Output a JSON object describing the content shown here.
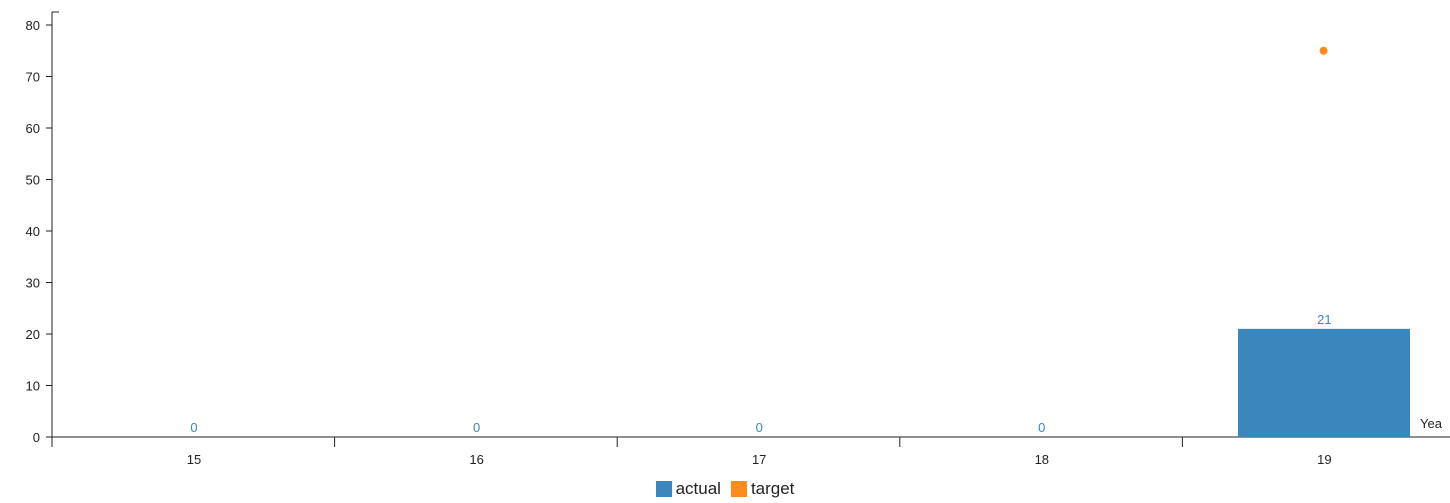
{
  "chart_data": {
    "type": "bar",
    "categories": [
      "15",
      "16",
      "17",
      "18",
      "19"
    ],
    "series": [
      {
        "name": "actual",
        "type": "bar",
        "color": "#3a87be",
        "values": [
          0,
          0,
          0,
          0,
          21
        ]
      },
      {
        "name": "target",
        "type": "scatter",
        "color": "#ff8c1a",
        "values": [
          null,
          null,
          null,
          null,
          75
        ]
      }
    ],
    "data_labels": [
      "0",
      "0",
      "0",
      "0",
      "21"
    ],
    "xlabel": "Yea",
    "ylim": [
      0,
      80
    ],
    "yticks": [
      0,
      10,
      20,
      30,
      40,
      50,
      60,
      70,
      80
    ],
    "grid": false,
    "legend_position": "bottom-center"
  }
}
